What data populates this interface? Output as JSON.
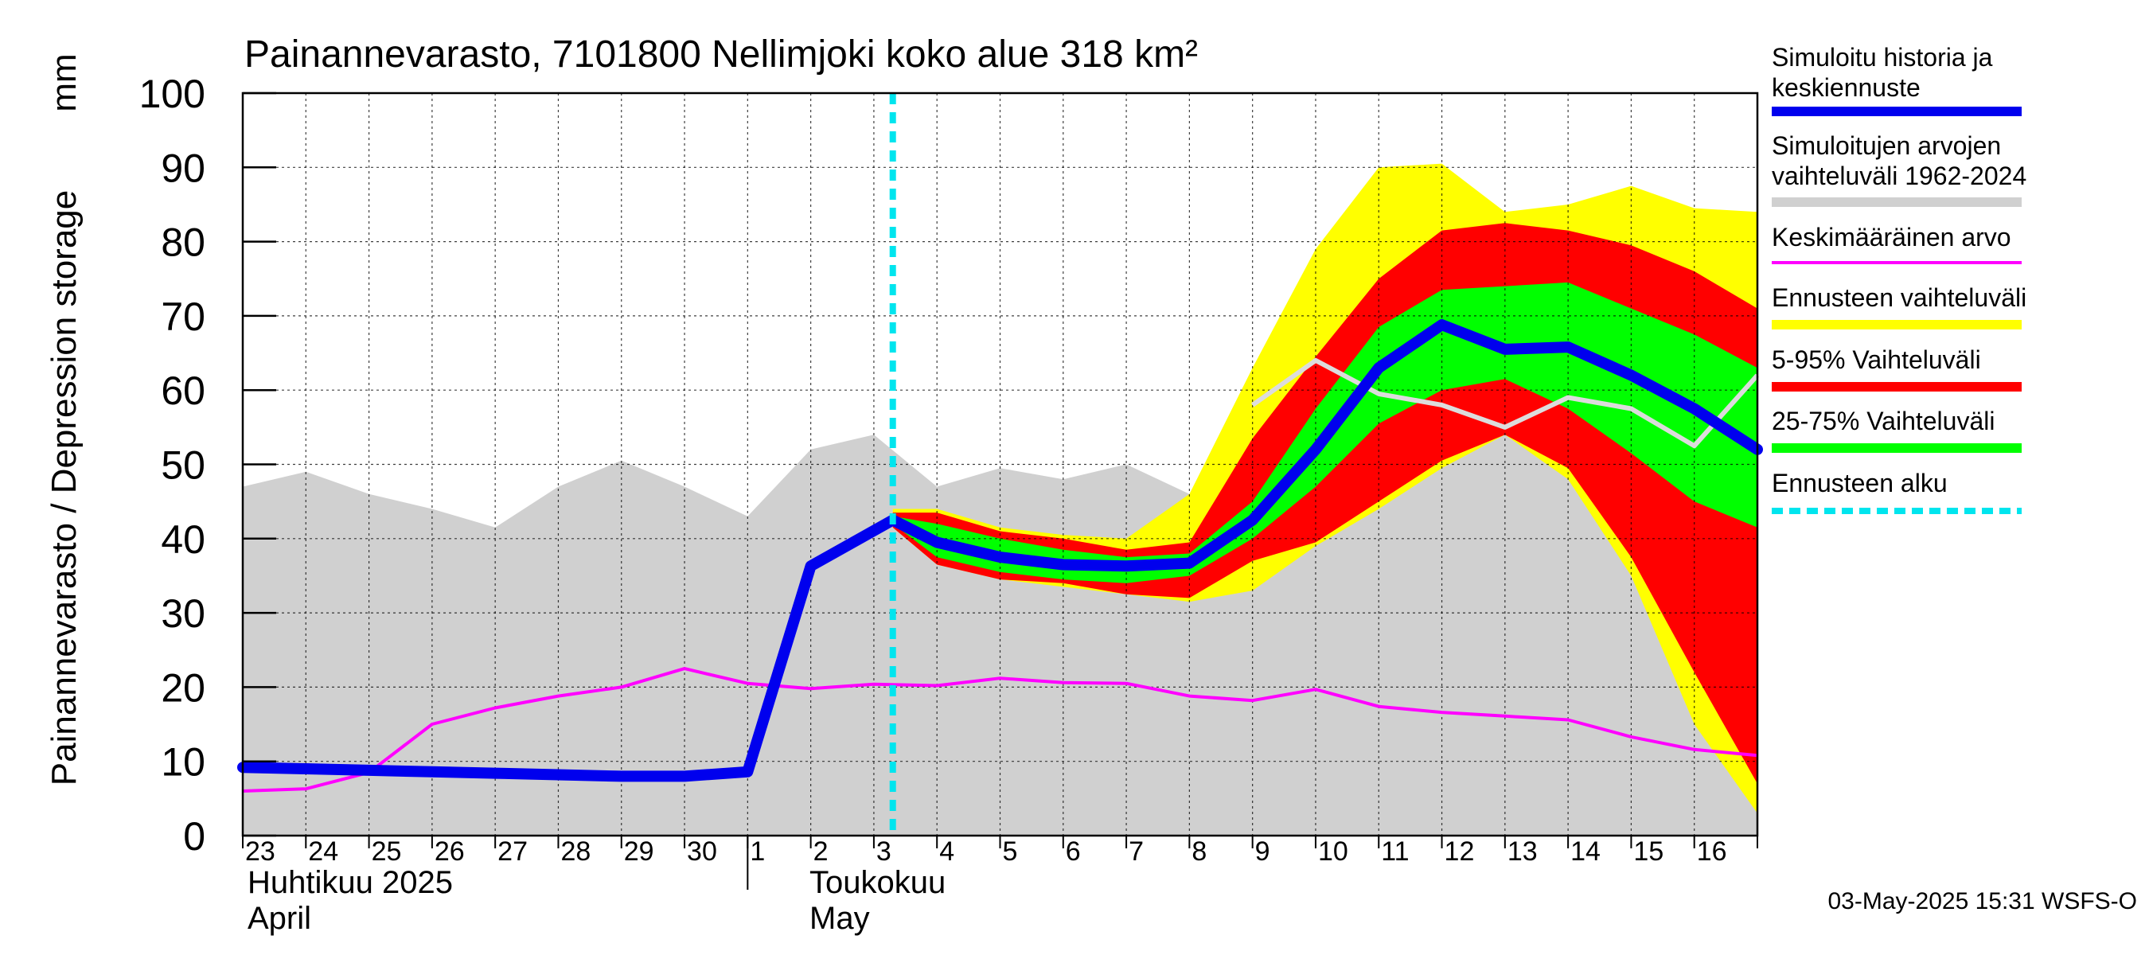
{
  "chart_data": {
    "type": "area",
    "title": "Painannevarasto, 7101800 Nellimjoki koko alue 318 km²",
    "ylabel": "Painannevarasto / Depression storage",
    "yunit": "mm",
    "ylim": [
      0,
      100
    ],
    "yticks": [
      0,
      10,
      20,
      30,
      40,
      50,
      60,
      70,
      80,
      90,
      100
    ],
    "grid": true,
    "legend_position": "right",
    "x_day_labels": [
      "23",
      "24",
      "25",
      "26",
      "27",
      "28",
      "29",
      "30",
      "1",
      "2",
      "3",
      "4",
      "5",
      "6",
      "7",
      "8",
      "9",
      "10",
      "11",
      "12",
      "13",
      "14",
      "15",
      "16"
    ],
    "month_labels": [
      {
        "fi": "Huhtikuu  2025",
        "en": "April"
      },
      {
        "fi": "Toukokuu",
        "en": "May"
      }
    ],
    "forecast_start_day": 10.3,
    "footer": "03-May-2025 15:31 WSFS-O",
    "series": [
      {
        "name": "Simuloitu historia ja keskiennuste",
        "color": "#0000ee",
        "role": "line",
        "x": [
          0,
          1,
          2,
          3,
          4,
          5,
          6,
          7,
          8,
          9,
          10.3,
          11,
          12,
          13,
          14,
          15,
          16,
          17,
          18,
          19,
          20,
          21,
          22,
          23,
          24
        ],
        "values": [
          9.2,
          9.0,
          8.8,
          8.6,
          8.4,
          8.2,
          8.0,
          8.0,
          8.6,
          36.3,
          42.5,
          39.5,
          37.5,
          36.5,
          36.3,
          36.7,
          42.5,
          52,
          63,
          68.8,
          65.5,
          65.8,
          62,
          57.5,
          52
        ]
      },
      {
        "name": "Simuloitujen arvojen vaihteluväli 1962-2024",
        "color": "#d0d0d0",
        "role": "band",
        "x": [
          0,
          1,
          2,
          3,
          4,
          5,
          6,
          7,
          8,
          9,
          10,
          11,
          12,
          13,
          14,
          15,
          16,
          17,
          18,
          19,
          20,
          21,
          22,
          23,
          24
        ],
        "upper": [
          47,
          49,
          46,
          44,
          41.5,
          47,
          50.5,
          47,
          43,
          52,
          54,
          47,
          49.5,
          48,
          50,
          46,
          58,
          64,
          59.5,
          58,
          55,
          59,
          57.5,
          52.5,
          62
        ],
        "lower": [
          0,
          0,
          0,
          0,
          0,
          0,
          0,
          0,
          0,
          0,
          0,
          0,
          0,
          0,
          0,
          0,
          0,
          0,
          0,
          0,
          0,
          0,
          0,
          0,
          0
        ],
        "line": [
          null,
          null,
          null,
          null,
          null,
          null,
          null,
          null,
          null,
          null,
          null,
          null,
          null,
          null,
          null,
          null,
          58,
          64,
          59.5,
          58,
          55,
          59,
          57.5,
          52.5,
          62
        ]
      },
      {
        "name": "Keskimääräinen arvo",
        "color": "#ff00ff",
        "role": "line",
        "x": [
          0,
          1,
          2,
          3,
          4,
          5,
          6,
          7,
          8,
          9,
          10,
          11,
          12,
          13,
          14,
          15,
          16,
          17,
          18,
          19,
          20,
          21,
          22,
          23,
          24
        ],
        "values": [
          6,
          6.3,
          8.5,
          15,
          17.2,
          18.8,
          20,
          22.5,
          20.5,
          19.8,
          20.4,
          20.2,
          21.2,
          20.6,
          20.5,
          18.8,
          18.2,
          19.7,
          17.4,
          16.6,
          16.1,
          15.6,
          13.3,
          11.6,
          10.8
        ]
      },
      {
        "name": "Ennusteen vaihteluväli",
        "color": "#ffff00",
        "role": "band",
        "x": [
          10.3,
          11,
          12,
          13,
          14,
          15,
          16,
          17,
          18,
          19,
          20,
          21,
          22,
          23,
          24
        ],
        "upper": [
          44,
          44,
          41.5,
          40.5,
          40,
          46,
          63,
          79,
          90,
          90.5,
          84,
          85,
          87.5,
          84.5,
          84
        ],
        "lower": [
          41.5,
          36.5,
          34.5,
          33.5,
          32.5,
          31.5,
          33,
          39,
          44,
          49.5,
          54,
          48,
          35,
          15,
          3
        ]
      },
      {
        "name": "5-95% Vaihteluväli",
        "color": "#ff0000",
        "role": "band",
        "x": [
          10.3,
          11,
          12,
          13,
          14,
          15,
          16,
          17,
          18,
          19,
          20,
          21,
          22,
          23,
          24
        ],
        "upper": [
          43.5,
          43.5,
          41,
          40,
          38.5,
          39.5,
          53.5,
          64.5,
          75,
          81.5,
          82.5,
          81.5,
          79.5,
          76,
          71
        ],
        "lower": [
          41.5,
          36.5,
          34.5,
          34,
          32.5,
          32,
          37,
          39.5,
          45,
          50.5,
          54,
          49.5,
          37.5,
          22,
          7
        ]
      },
      {
        "name": "25-75% Vaihteluväli",
        "color": "#00ff00",
        "role": "band",
        "x": [
          10.3,
          11,
          12,
          13,
          14,
          15,
          16,
          17,
          18,
          19,
          20,
          21,
          22,
          23,
          24
        ],
        "upper": [
          43,
          42,
          40,
          38.5,
          37.5,
          38,
          45,
          57.5,
          68.5,
          73.5,
          74,
          74.5,
          71,
          67.5,
          63
        ],
        "lower": [
          42,
          37.5,
          35.5,
          34.5,
          34,
          35,
          40,
          47,
          55.5,
          60,
          61.5,
          57.5,
          51.5,
          45,
          41.5
        ]
      },
      {
        "name": "Ennusteen alku",
        "color": "#00e5ee",
        "role": "vline"
      }
    ]
  }
}
